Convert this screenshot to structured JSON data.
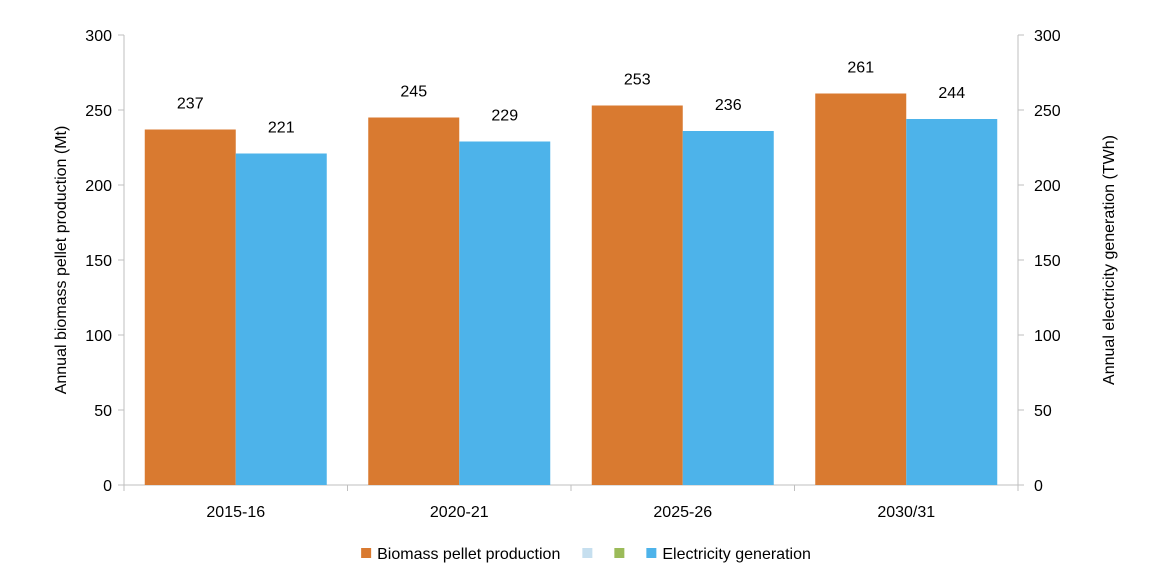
{
  "chart_data": {
    "type": "bar",
    "categories": [
      "2015-16",
      "2020-21",
      "2025-26",
      "2030/31"
    ],
    "series": [
      {
        "name": "Biomass pellet production",
        "axis": "left",
        "color": "#D97A30",
        "values": [
          237,
          245,
          253,
          261
        ],
        "labels": [
          "237",
          "245",
          "253",
          "261"
        ]
      },
      {
        "name": "Electricity generation",
        "axis": "right",
        "color": "#4DB3EA",
        "values": [
          221,
          229,
          236,
          244
        ],
        "labels": [
          "221",
          "229",
          "236",
          "244"
        ]
      }
    ],
    "legend": {
      "position": "bottom",
      "entries": [
        {
          "label": "Biomass pellet production",
          "color": "#D97A30"
        },
        {
          "label": "",
          "color": "#C6DFEF"
        },
        {
          "label": "",
          "color": "#9BBB59"
        },
        {
          "label": "Electricity generation",
          "color": "#4DB3EA"
        }
      ]
    },
    "ylabel": "Annual biomass pellet production (Mt)",
    "y2label": "Annual electricity generation (TWh)",
    "ylim": [
      0,
      300
    ],
    "y2lim": [
      0,
      300
    ],
    "yticks": [
      0,
      50,
      100,
      150,
      200,
      250,
      300
    ],
    "y2ticks": [
      0,
      50,
      100,
      150,
      200,
      250,
      300
    ],
    "ytick_labels": [
      "0",
      "50",
      "100",
      "150",
      "200",
      "250",
      "300"
    ],
    "y2tick_labels": [
      "0",
      "50",
      "100",
      "150",
      "200",
      "250",
      "300"
    ],
    "grid": false,
    "axis_color": "#BFBFBF"
  }
}
